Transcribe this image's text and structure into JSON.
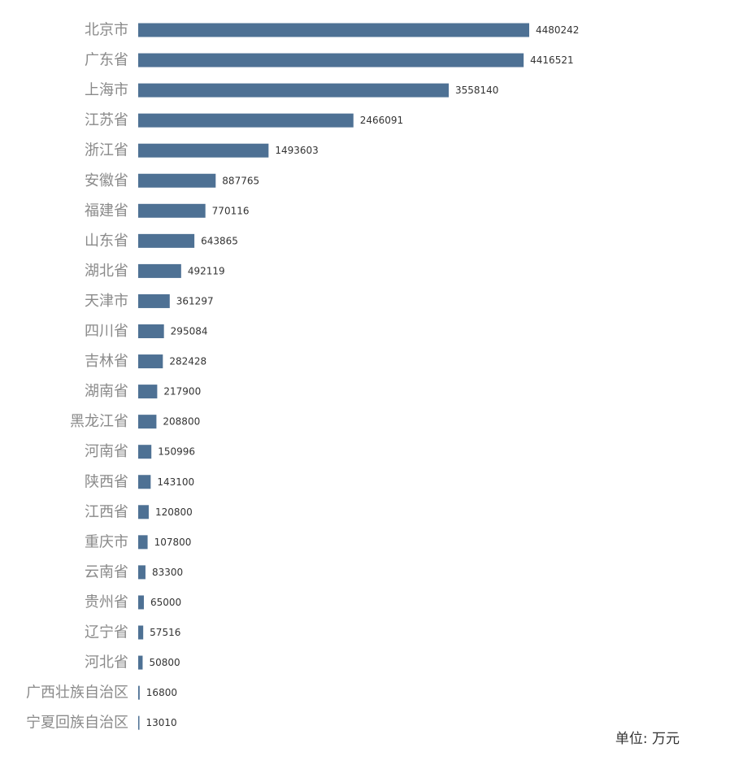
{
  "unit_note": "单位: 万元",
  "colors": {
    "bar": "#4e7194",
    "category_label": "#8a8a8a",
    "value_label": "#333333"
  },
  "chart_data": {
    "type": "bar",
    "orientation": "horizontal",
    "title": "",
    "xlabel": "",
    "ylabel": "",
    "grid": false,
    "legend": "none",
    "categories": [
      "北京市",
      "广东省",
      "上海市",
      "江苏省",
      "浙江省",
      "安徽省",
      "福建省",
      "山东省",
      "湖北省",
      "天津市",
      "四川省",
      "吉林省",
      "湖南省",
      "黑龙江省",
      "河南省",
      "陕西省",
      "江西省",
      "重庆市",
      "云南省",
      "贵州省",
      "辽宁省",
      "河北省",
      "广西壮族自治区",
      "宁夏回族自治区"
    ],
    "values": [
      4480242,
      4416521,
      3558140,
      2466091,
      1493603,
      887765,
      770116,
      643865,
      492119,
      361297,
      295084,
      282428,
      217900,
      208800,
      150996,
      143100,
      120800,
      107800,
      83300,
      65000,
      57516,
      50800,
      16800,
      13010
    ],
    "xlim": [
      0,
      4480242
    ]
  }
}
